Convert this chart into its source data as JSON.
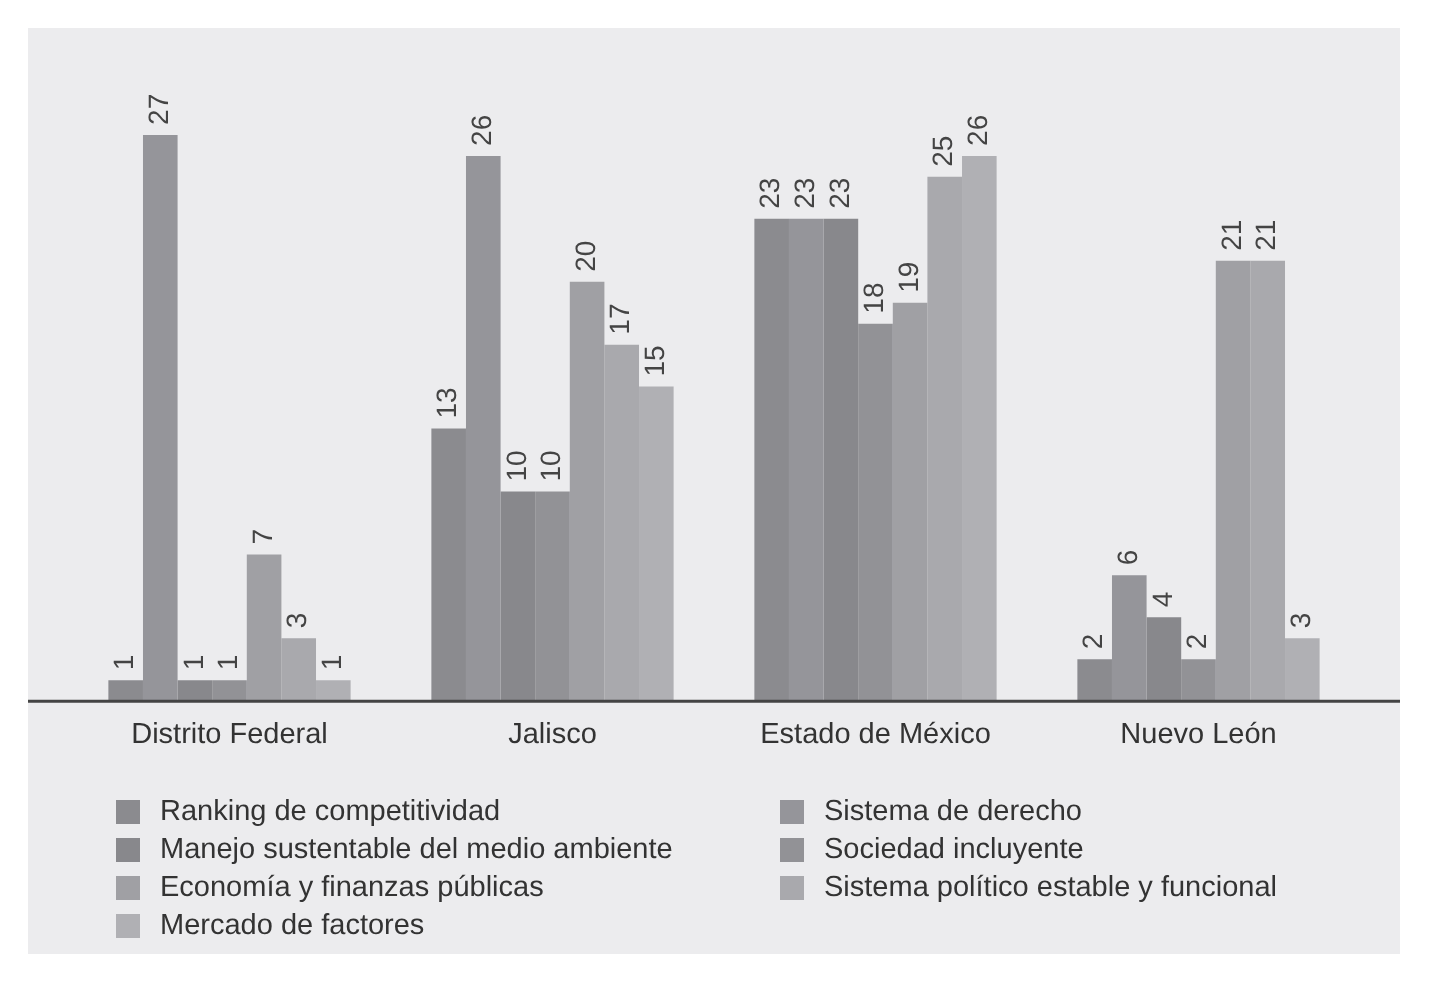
{
  "chart_data": {
    "type": "bar",
    "categories": [
      "Distrito Federal",
      "Jalisco",
      "Estado de México",
      "Nuevo León"
    ],
    "series": [
      {
        "name": "Ranking de competitividad",
        "color": "#8b8b8f",
        "values": [
          1,
          13,
          23,
          2
        ]
      },
      {
        "name": "Sistema de derecho",
        "color": "#95959a",
        "values": [
          27,
          26,
          23,
          6
        ]
      },
      {
        "name": "Manejo sustentable del medio ambiente",
        "color": "#88888c",
        "values": [
          1,
          10,
          23,
          4
        ]
      },
      {
        "name": "Sociedad incluyente",
        "color": "#929296",
        "values": [
          1,
          10,
          18,
          2
        ]
      },
      {
        "name": "Economía y finanzas públicas",
        "color": "#a0a0a4",
        "values": [
          7,
          20,
          19,
          21
        ]
      },
      {
        "name": "Sistema político estable y funcional",
        "color": "#a9a9ad",
        "values": [
          3,
          17,
          25,
          21
        ]
      },
      {
        "name": "Mercado de factores",
        "color": "#b0b0b4",
        "values": [
          1,
          15,
          26,
          3
        ]
      }
    ],
    "data_labels": true,
    "legend": "bottom",
    "grid": false
  }
}
